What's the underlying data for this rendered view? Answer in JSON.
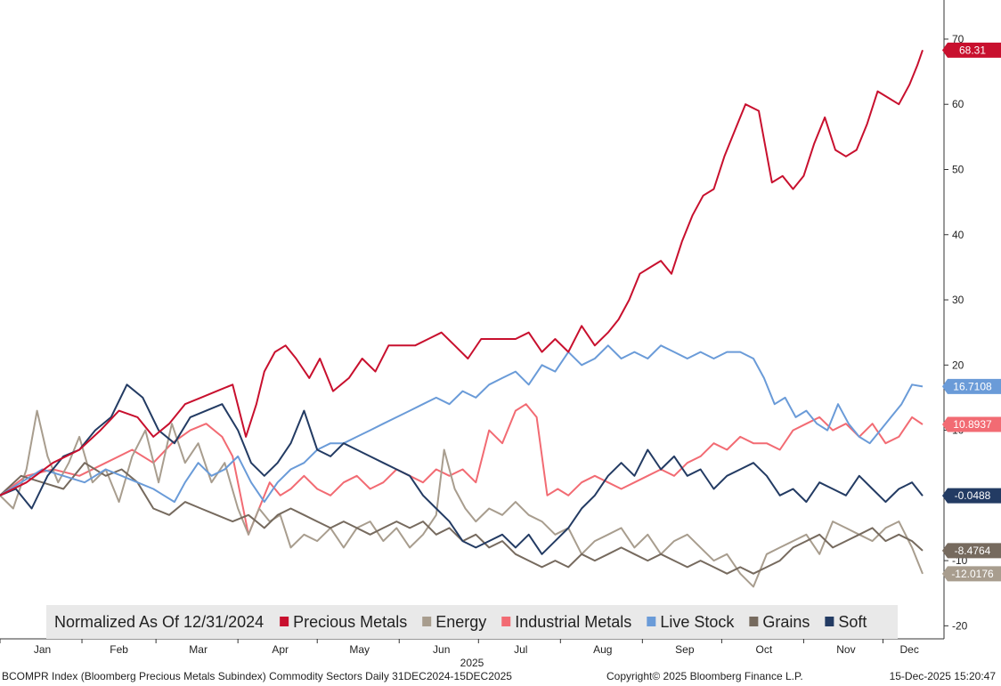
{
  "chart_data": {
    "type": "line",
    "title": "",
    "legend_title": "Normalized As Of 12/31/2024",
    "legend_position": "bottom",
    "xlabel": "2025",
    "ylabel": "",
    "ylim": [
      -22,
      76
    ],
    "yticks": [
      -20,
      -10,
      0,
      10,
      20,
      30,
      40,
      50,
      60,
      70
    ],
    "x_unit": "days since 2024-12-31",
    "xlim": [
      0,
      349
    ],
    "months": [
      {
        "label": "Jan",
        "day": 16
      },
      {
        "label": "Feb",
        "day": 45
      },
      {
        "label": "Mar",
        "day": 75
      },
      {
        "label": "Apr",
        "day": 106
      },
      {
        "label": "May",
        "day": 136
      },
      {
        "label": "Jun",
        "day": 167
      },
      {
        "label": "Jul",
        "day": 197
      },
      {
        "label": "Aug",
        "day": 228
      },
      {
        "label": "Sep",
        "day": 259
      },
      {
        "label": "Oct",
        "day": 289
      },
      {
        "label": "Nov",
        "day": 320
      },
      {
        "label": "Dec",
        "day": 344
      }
    ],
    "month_boundaries": [
      0,
      31,
      59,
      90,
      120,
      151,
      181,
      212,
      243,
      273,
      304,
      334
    ],
    "series": [
      {
        "name": "Precious Metals",
        "color": "#C8102E",
        "last": "68.31",
        "x": [
          0,
          10,
          20,
          30,
          38,
          45,
          52,
          58,
          64,
          70,
          76,
          82,
          88,
          93,
          97,
          100,
          104,
          108,
          112,
          117,
          121,
          126,
          132,
          137,
          142,
          147,
          152,
          157,
          162,
          167,
          172,
          177,
          182,
          188,
          195,
          200,
          205,
          210,
          215,
          220,
          225,
          230,
          234,
          238,
          242,
          246,
          250,
          254,
          258,
          262,
          266,
          270,
          274,
          278,
          282,
          287,
          292,
          296,
          300,
          304,
          308,
          312,
          316,
          320,
          324,
          328,
          332,
          336,
          340,
          344,
          347,
          349
        ],
        "y": [
          0,
          2,
          5,
          7,
          10,
          13,
          12,
          9,
          11,
          14,
          15,
          16,
          17,
          9,
          14,
          19,
          22,
          23,
          21,
          18,
          21,
          16,
          18,
          21,
          19,
          23,
          23,
          23,
          24,
          25,
          23,
          21,
          24,
          24,
          24,
          25,
          22,
          24,
          22,
          26,
          23,
          25,
          27,
          30,
          34,
          35,
          36,
          34,
          39,
          43,
          46,
          47,
          52,
          56,
          60,
          59,
          48,
          49,
          47,
          49,
          54,
          58,
          53,
          52,
          53,
          57,
          62,
          61,
          60,
          63,
          66,
          68.31
        ]
      },
      {
        "name": "Energy",
        "color": "#A89D8E",
        "last": "-12.0176",
        "x": [
          0,
          5,
          10,
          14,
          18,
          22,
          26,
          30,
          35,
          40,
          45,
          50,
          55,
          60,
          65,
          70,
          75,
          80,
          85,
          90,
          94,
          98,
          102,
          106,
          110,
          115,
          120,
          125,
          130,
          135,
          140,
          145,
          150,
          155,
          160,
          165,
          168,
          172,
          176,
          180,
          185,
          190,
          195,
          200,
          205,
          210,
          215,
          220,
          225,
          230,
          235,
          240,
          245,
          250,
          255,
          260,
          265,
          270,
          275,
          280,
          285,
          290,
          295,
          300,
          305,
          310,
          315,
          320,
          325,
          330,
          335,
          340,
          345,
          349
        ],
        "y": [
          0,
          -2,
          4,
          13,
          6,
          2,
          5,
          9,
          2,
          4,
          -1,
          6,
          10,
          2,
          11,
          5,
          8,
          2,
          5,
          -2,
          -6,
          -2,
          -4,
          -3,
          -8,
          -6,
          -7,
          -5,
          -8,
          -5,
          -4,
          -7,
          -5,
          -8,
          -6,
          -3,
          7,
          1,
          -2,
          -4,
          -2,
          -3,
          -1,
          -3,
          -4,
          -6,
          -5,
          -9,
          -7,
          -6,
          -5,
          -8,
          -6,
          -9,
          -7,
          -6,
          -8,
          -10,
          -9,
          -12,
          -14,
          -9,
          -8,
          -7,
          -6,
          -9,
          -4,
          -5,
          -6,
          -7,
          -5,
          -4,
          -8,
          -12.0176
        ]
      },
      {
        "name": "Industrial Metals",
        "color": "#F26B73",
        "last": "10.8937",
        "x": [
          0,
          10,
          20,
          30,
          40,
          50,
          58,
          65,
          72,
          78,
          84,
          88,
          91,
          94,
          98,
          102,
          106,
          110,
          115,
          120,
          125,
          130,
          135,
          140,
          145,
          150,
          155,
          160,
          165,
          170,
          175,
          180,
          185,
          190,
          195,
          199,
          203,
          207,
          211,
          215,
          220,
          225,
          230,
          235,
          240,
          245,
          250,
          255,
          260,
          265,
          270,
          275,
          280,
          285,
          290,
          295,
          300,
          305,
          310,
          315,
          320,
          325,
          330,
          335,
          340,
          345,
          349
        ],
        "y": [
          0,
          3,
          4,
          3,
          5,
          7,
          5,
          8,
          10,
          11,
          9,
          6,
          0,
          -6,
          -2,
          2,
          0,
          1,
          3,
          1,
          0,
          2,
          3,
          1,
          2,
          4,
          3,
          2,
          4,
          3,
          4,
          2,
          10,
          8,
          13,
          14,
          12,
          0,
          1,
          0,
          2,
          3,
          2,
          1,
          2,
          3,
          4,
          3,
          5,
          6,
          8,
          7,
          9,
          8,
          8,
          7,
          10,
          11,
          12,
          10,
          11,
          9,
          11,
          8,
          9,
          12,
          10.8937
        ]
      },
      {
        "name": "Live Stock",
        "color": "#6A9BD8",
        "last": "16.7108",
        "x": [
          0,
          8,
          16,
          24,
          32,
          40,
          46,
          52,
          58,
          62,
          66,
          70,
          75,
          80,
          85,
          90,
          95,
          100,
          105,
          110,
          115,
          120,
          125,
          130,
          135,
          140,
          145,
          150,
          155,
          160,
          165,
          170,
          175,
          180,
          185,
          190,
          195,
          200,
          205,
          210,
          215,
          220,
          225,
          230,
          235,
          240,
          245,
          250,
          255,
          260,
          265,
          270,
          275,
          280,
          285,
          289,
          293,
          297,
          301,
          305,
          309,
          313,
          317,
          321,
          325,
          329,
          333,
          337,
          341,
          345,
          349
        ],
        "y": [
          0,
          2,
          4,
          3,
          2,
          4,
          3,
          2,
          1,
          0,
          -1,
          2,
          5,
          3,
          4,
          6,
          2,
          -1,
          2,
          4,
          5,
          7,
          8,
          8,
          9,
          10,
          11,
          12,
          13,
          14,
          15,
          14,
          16,
          15,
          17,
          18,
          19,
          17,
          20,
          19,
          22,
          20,
          21,
          23,
          21,
          22,
          21,
          23,
          22,
          21,
          22,
          21,
          22,
          22,
          21,
          18,
          14,
          15,
          12,
          13,
          11,
          10,
          14,
          11,
          9,
          8,
          10,
          12,
          14,
          17,
          16.7108
        ]
      },
      {
        "name": "Grains",
        "color": "#766A5E",
        "last": "-8.4764",
        "x": [
          0,
          8,
          16,
          24,
          32,
          40,
          46,
          52,
          58,
          64,
          70,
          76,
          82,
          88,
          94,
          100,
          105,
          110,
          115,
          120,
          125,
          130,
          135,
          140,
          145,
          150,
          155,
          160,
          165,
          170,
          175,
          180,
          185,
          190,
          195,
          200,
          205,
          210,
          215,
          220,
          225,
          230,
          235,
          240,
          245,
          250,
          255,
          260,
          265,
          270,
          275,
          280,
          285,
          290,
          295,
          300,
          305,
          310,
          315,
          320,
          325,
          330,
          335,
          340,
          345,
          349
        ],
        "y": [
          0,
          3,
          2,
          1,
          5,
          3,
          4,
          2,
          -2,
          -3,
          -1,
          -2,
          -3,
          -4,
          -3,
          -5,
          -3,
          -2,
          -3,
          -4,
          -5,
          -4,
          -5,
          -6,
          -5,
          -4,
          -5,
          -4,
          -6,
          -5,
          -7,
          -6,
          -8,
          -7,
          -9,
          -10,
          -11,
          -10,
          -11,
          -9,
          -10,
          -9,
          -8,
          -9,
          -10,
          -9,
          -10,
          -11,
          -10,
          -11,
          -12,
          -11,
          -12,
          -11,
          -10,
          -8,
          -7,
          -6,
          -8,
          -7,
          -6,
          -5,
          -7,
          -6,
          -7,
          -8.4764
        ]
      },
      {
        "name": "Soft",
        "color": "#233B63",
        "last": "-0.0488",
        "x": [
          0,
          6,
          12,
          18,
          24,
          30,
          36,
          42,
          48,
          54,
          60,
          66,
          72,
          78,
          84,
          90,
          95,
          100,
          105,
          110,
          115,
          120,
          125,
          130,
          135,
          140,
          145,
          150,
          155,
          160,
          165,
          170,
          175,
          180,
          185,
          190,
          195,
          200,
          205,
          210,
          215,
          220,
          225,
          230,
          235,
          240,
          245,
          250,
          255,
          260,
          265,
          270,
          275,
          280,
          285,
          290,
          295,
          300,
          305,
          310,
          315,
          320,
          325,
          330,
          335,
          340,
          345,
          349
        ],
        "y": [
          0,
          1,
          -2,
          3,
          6,
          7,
          10,
          12,
          17,
          15,
          10,
          8,
          12,
          13,
          14,
          10,
          5,
          3,
          5,
          8,
          13,
          7,
          6,
          8,
          7,
          6,
          5,
          4,
          3,
          0,
          -2,
          -4,
          -7,
          -8,
          -7,
          -6,
          -8,
          -6,
          -9,
          -7,
          -5,
          -2,
          0,
          3,
          5,
          3,
          7,
          4,
          6,
          3,
          4,
          1,
          3,
          4,
          5,
          3,
          0,
          1,
          -1,
          2,
          1,
          0,
          3,
          1,
          -1,
          1,
          2,
          -0.0488
        ]
      }
    ]
  },
  "footer": {
    "left": "BCOMPR Index (Bloomberg Precious Metals Subindex) Commodity Sectors Daily 31DEC2024-15DEC2025",
    "middle": "Copyright© 2025 Bloomberg Finance L.P.",
    "right": "15-Dec-2025 15:20:47"
  }
}
